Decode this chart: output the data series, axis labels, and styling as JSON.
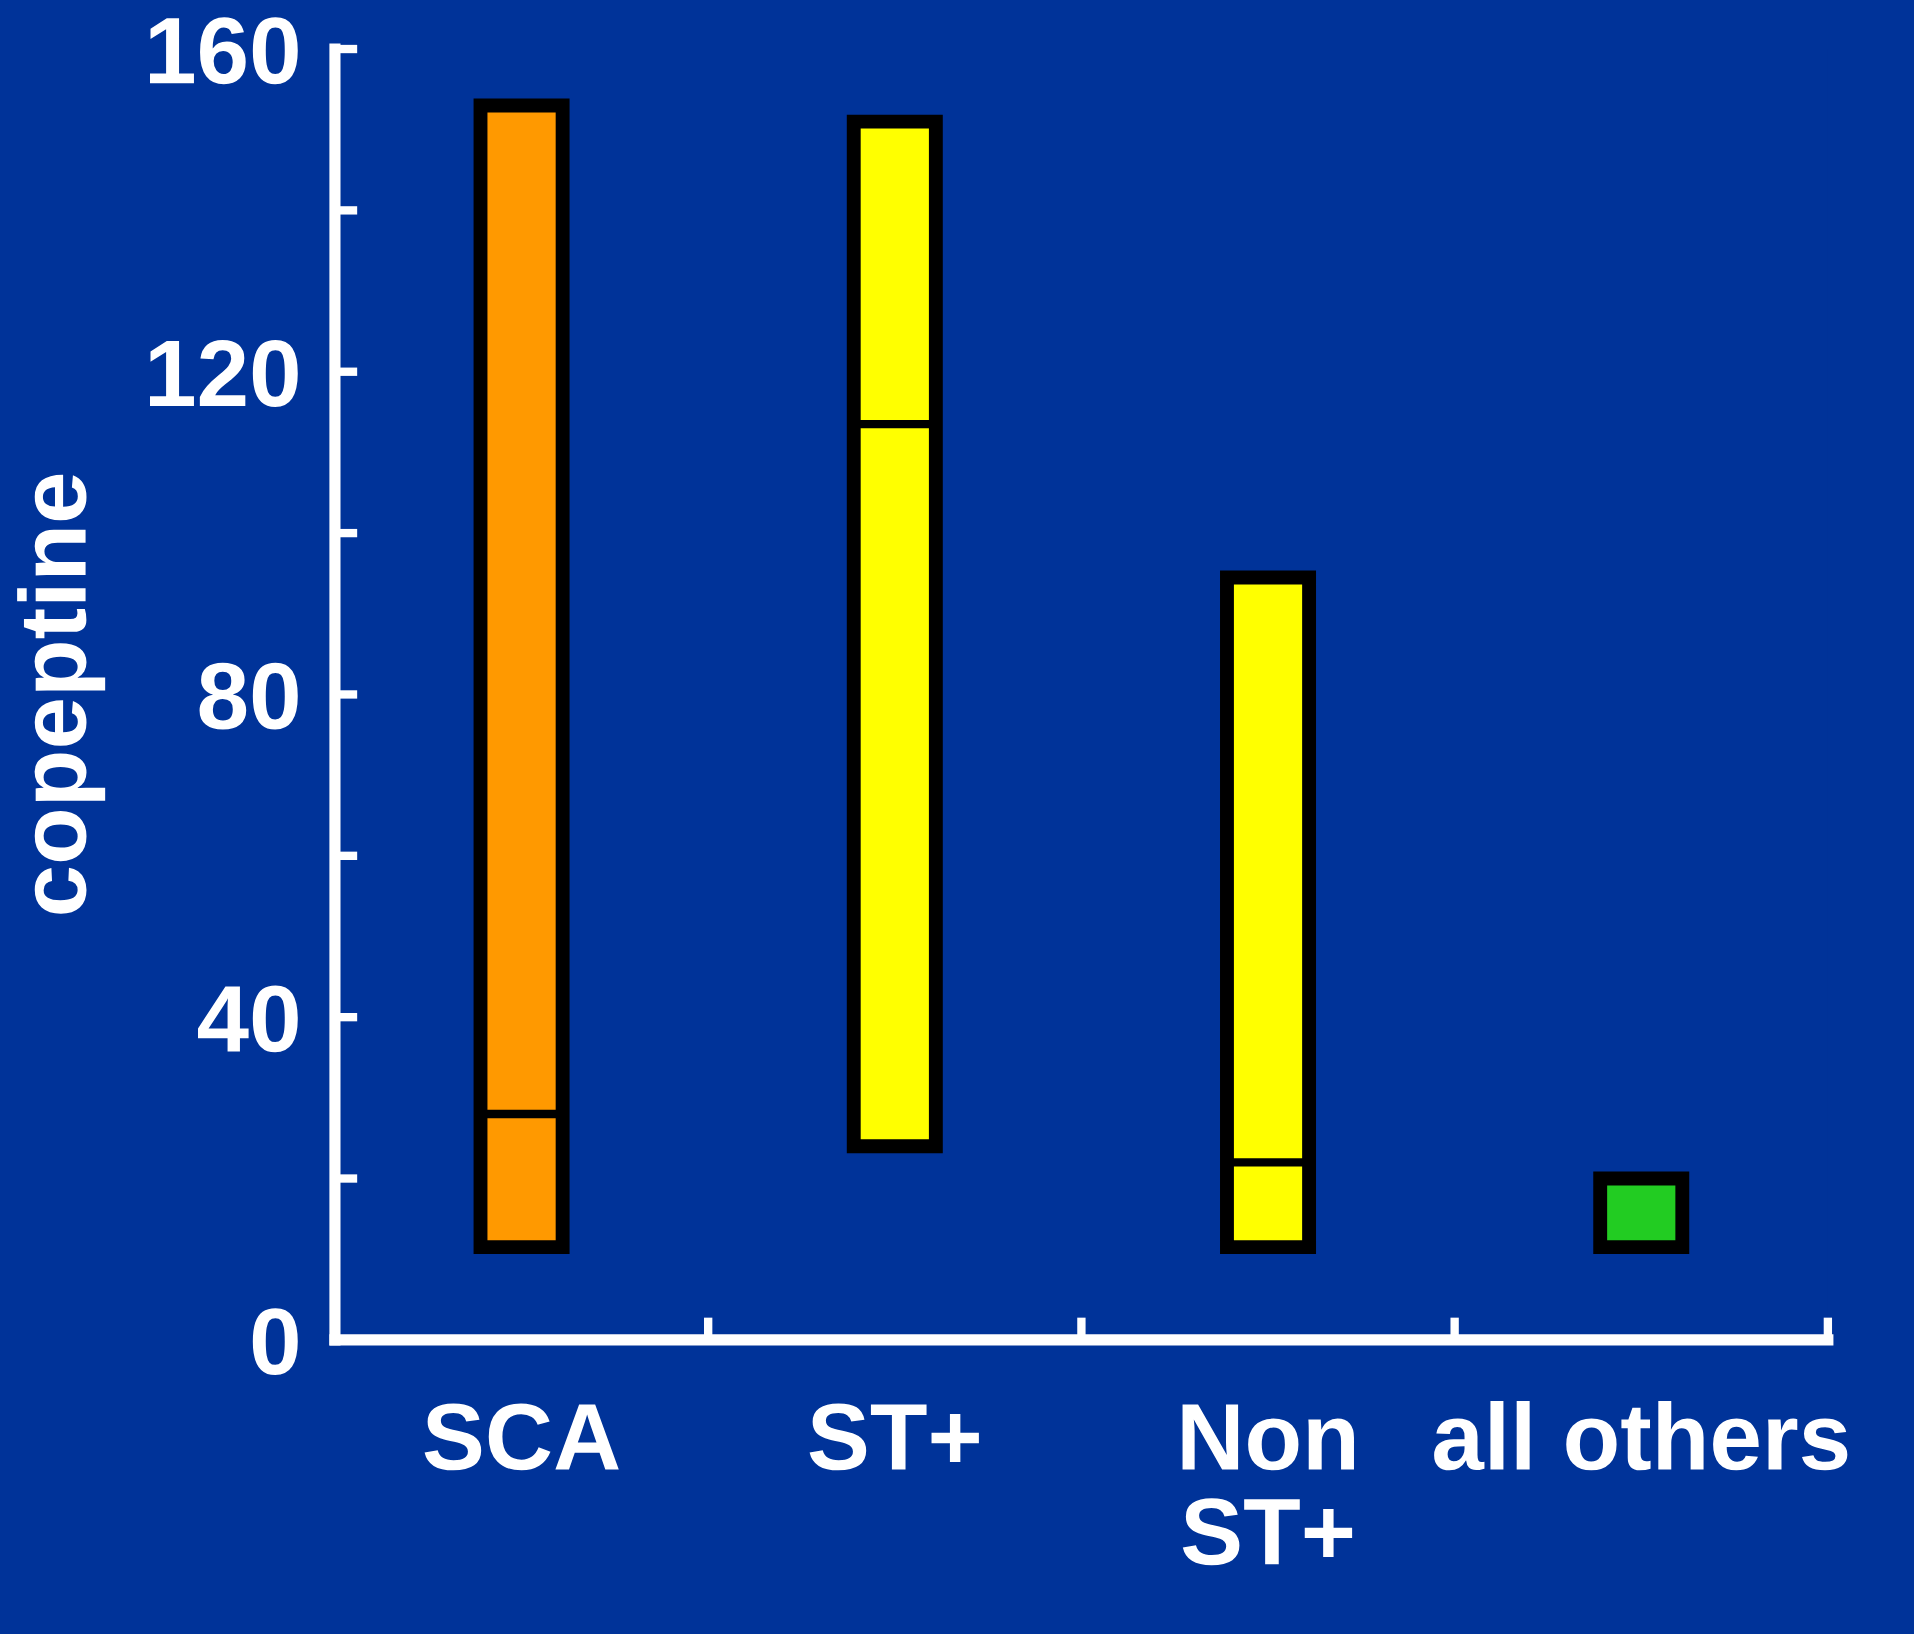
{
  "chart_data": {
    "type": "box",
    "ylabel": "copeptine",
    "categories": [
      "SCA",
      "ST+",
      "Non\nST+",
      "all others"
    ],
    "boxes": [
      {
        "low": 11.5,
        "q1": 11.5,
        "median": 28,
        "q3": 153,
        "high": 153
      },
      {
        "low": 24,
        "q1": 24,
        "median": 113.5,
        "q3": 151,
        "high": 151
      },
      {
        "low": 11.5,
        "q1": 11.5,
        "median": 22,
        "q3": 94.5,
        "high": 94.5
      },
      {
        "low": 11.5,
        "q1": 11.5,
        "median": 11.5,
        "q3": 20,
        "high": 20
      }
    ],
    "colors": [
      "#ff9900",
      "#ffff00",
      "#ffff00",
      "#22cc22"
    ],
    "ylim": [
      0,
      160
    ],
    "yticks": [
      0,
      {
        "value": 20,
        "label": null
      },
      40,
      {
        "value": 60,
        "label": null
      },
      80,
      {
        "value": 100,
        "label": null
      },
      120,
      {
        "value": 140,
        "label": null
      },
      160
    ],
    "grid": false
  }
}
